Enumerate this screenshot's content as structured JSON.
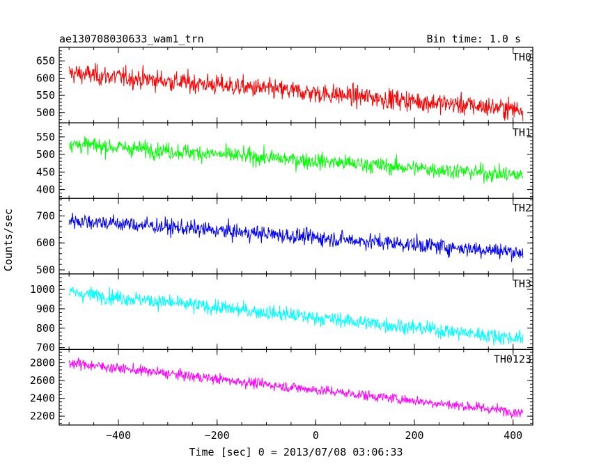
{
  "chart_data": {
    "type": "line",
    "title": "ae130708030633_wam1_trn",
    "subtitle": "Bin time: 1.0 s",
    "xlabel": "Time [sec] 0 = 2013/07/08 03:06:33",
    "ylabel": "Counts/sec",
    "xlim": [
      -520,
      440
    ],
    "x_ticks": [
      -400,
      -200,
      0,
      200,
      400
    ],
    "x_tick_labels": [
      "−400",
      "−200",
      "0",
      "200",
      "400"
    ],
    "x_range": [
      -500,
      420
    ],
    "panels": [
      {
        "name": "TH0",
        "color": "#ff0000",
        "ylim": [
          470,
          690
        ],
        "y_ticks": [
          500,
          550,
          600,
          650
        ],
        "y_tick_labels": [
          "500",
          "550",
          "600",
          "650"
        ],
        "start_mean": 615,
        "end_mean": 508,
        "noise": 38
      },
      {
        "name": "TH1",
        "color": "#00ff00",
        "ylim": [
          375,
          590
        ],
        "y_ticks": [
          400,
          450,
          500,
          550
        ],
        "y_tick_labels": [
          "400",
          "450",
          "500",
          "550"
        ],
        "start_mean": 530,
        "end_mean": 440,
        "noise": 30
      },
      {
        "name": "TH2",
        "color": "#0000ff",
        "ylim": [
          485,
          765
        ],
        "y_ticks": [
          500,
          600,
          700
        ],
        "y_tick_labels": [
          "500",
          "600",
          "700"
        ],
        "start_mean": 685,
        "end_mean": 565,
        "noise": 38
      },
      {
        "name": "TH3",
        "color": "#00ffff",
        "ylim": [
          690,
          1080
        ],
        "y_ticks": [
          700,
          800,
          900,
          1000
        ],
        "y_tick_labels": [
          "700",
          "800",
          "900",
          "1000"
        ],
        "start_mean": 985,
        "end_mean": 745,
        "noise": 50
      },
      {
        "name": "TH0123",
        "color": "#ff00ff",
        "ylim": [
          2100,
          2950
        ],
        "y_ticks": [
          2200,
          2400,
          2600,
          2800
        ],
        "y_tick_labels": [
          "2200",
          "2400",
          "2600",
          "2800"
        ],
        "start_mean": 2800,
        "end_mean": 2240,
        "noise": 75
      }
    ],
    "grid": false
  }
}
